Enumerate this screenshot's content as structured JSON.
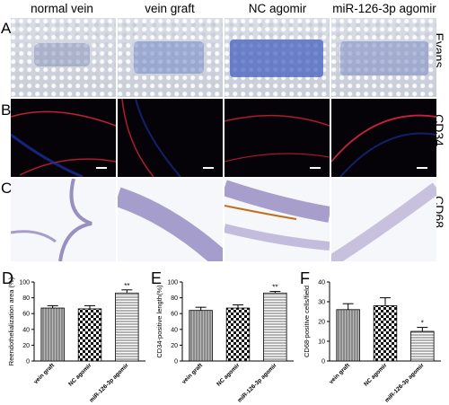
{
  "columns": [
    "normal vein",
    "vein graft",
    "NC agomir",
    "miR-126-3p agomir"
  ],
  "rows": [
    {
      "letter": "A",
      "label": "Evans"
    },
    {
      "letter": "B",
      "label": "CD34"
    },
    {
      "letter": "C",
      "label": "CD68"
    }
  ],
  "chart_data": [
    {
      "type": "bar",
      "panel": "D",
      "categories": [
        "vein graft",
        "NC agomir",
        "miR-126-3p agomir"
      ],
      "values": [
        67,
        66,
        86
      ],
      "errors": [
        3,
        4,
        4
      ],
      "annotations": [
        "",
        "",
        "**"
      ],
      "ylabel": "Reendothelialization area (%)",
      "ylim": [
        0,
        100
      ],
      "yticks": [
        "0",
        "20",
        "40",
        "60",
        "80",
        "100"
      ]
    },
    {
      "type": "bar",
      "panel": "E",
      "categories": [
        "vein graft",
        "NC agomir",
        "miR-126-3p agomir"
      ],
      "values": [
        64,
        67,
        86
      ],
      "errors": [
        4,
        4,
        2
      ],
      "annotations": [
        "",
        "",
        "**"
      ],
      "ylabel": "CD34-positive length(%)",
      "ylim": [
        0,
        100
      ],
      "yticks": [
        "0",
        "20",
        "40",
        "60",
        "80",
        "100"
      ]
    },
    {
      "type": "bar",
      "panel": "F",
      "categories": [
        "vein graft",
        "NC agomir",
        "miR-126-3p agomir"
      ],
      "values": [
        26,
        28,
        15
      ],
      "errors": [
        3,
        4,
        2
      ],
      "annotations": [
        "",
        "",
        "*"
      ],
      "ylabel": "CD68-positive cells/field",
      "ylim": [
        0,
        40
      ],
      "yticks": [
        "0",
        "10",
        "20",
        "30",
        "40"
      ]
    }
  ]
}
